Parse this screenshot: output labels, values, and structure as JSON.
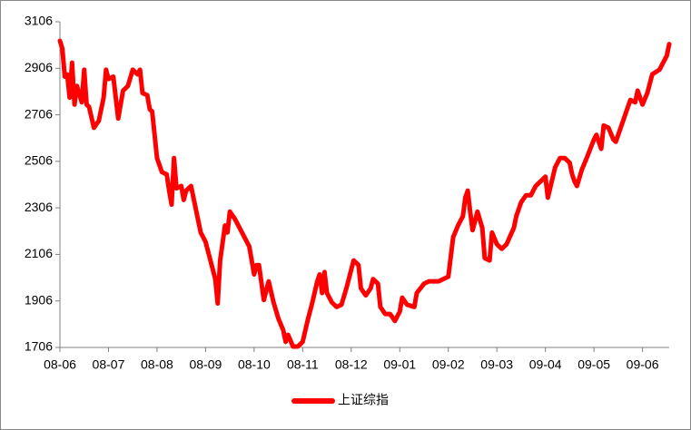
{
  "chart_data": {
    "type": "line",
    "x": [
      0,
      0.05,
      0.1,
      0.15,
      0.2,
      0.25,
      0.3,
      0.35,
      0.45,
      0.5,
      0.55,
      0.6,
      0.7,
      0.8,
      0.9,
      0.95,
      1.0,
      1.1,
      1.15,
      1.2,
      1.3,
      1.4,
      1.5,
      1.6,
      1.65,
      1.7,
      1.8,
      1.85,
      1.9,
      1.95,
      2.0,
      2.1,
      2.2,
      2.25,
      2.3,
      2.35,
      2.4,
      2.5,
      2.55,
      2.6,
      2.7,
      2.8,
      2.9,
      3.0,
      3.1,
      3.2,
      3.25,
      3.3,
      3.4,
      3.45,
      3.5,
      3.6,
      3.7,
      3.8,
      3.9,
      4.0,
      4.05,
      4.1,
      4.2,
      4.3,
      4.4,
      4.5,
      4.6,
      4.65,
      4.7,
      4.8,
      4.9,
      5.0,
      5.1,
      5.2,
      5.3,
      5.35,
      5.4,
      5.45,
      5.5,
      5.6,
      5.7,
      5.8,
      5.9,
      6.0,
      6.05,
      6.15,
      6.2,
      6.3,
      6.4,
      6.45,
      6.55,
      6.6,
      6.7,
      6.8,
      6.9,
      7.0,
      7.05,
      7.15,
      7.3,
      7.35,
      7.5,
      7.6,
      7.7,
      7.8,
      8.0,
      8.1,
      8.2,
      8.3,
      8.35,
      8.4,
      8.45,
      8.5,
      8.6,
      8.7,
      8.75,
      8.85,
      8.9,
      9.0,
      9.1,
      9.2,
      9.35,
      9.4,
      9.5,
      9.6,
      9.7,
      9.8,
      9.9,
      10.0,
      10.05,
      10.2,
      10.3,
      10.4,
      10.5,
      10.55,
      10.6,
      10.65,
      10.75,
      10.85,
      11.0,
      11.05,
      11.15,
      11.2,
      11.3,
      11.4,
      11.45,
      11.5,
      11.6,
      11.7,
      11.75,
      11.85,
      11.9,
      12.0,
      12.1,
      12.2,
      12.35,
      12.45,
      12.5,
      12.55
    ],
    "series": [
      {
        "name": "上证综指",
        "color": "#ff0000",
        "values": [
          3024,
          2990,
          2870,
          2880,
          2780,
          2930,
          2750,
          2830,
          2760,
          2900,
          2750,
          2740,
          2650,
          2680,
          2780,
          2900,
          2860,
          2870,
          2780,
          2690,
          2810,
          2830,
          2900,
          2880,
          2900,
          2800,
          2790,
          2730,
          2720,
          2620,
          2520,
          2460,
          2450,
          2380,
          2320,
          2520,
          2390,
          2400,
          2340,
          2380,
          2400,
          2300,
          2200,
          2160,
          2080,
          2000,
          1895,
          2080,
          2230,
          2200,
          2290,
          2260,
          2220,
          2180,
          2140,
          2020,
          2060,
          2060,
          1910,
          1990,
          1900,
          1830,
          1780,
          1730,
          1760,
          1710,
          1710,
          1730,
          1820,
          1900,
          1990,
          2020,
          1940,
          2030,
          1940,
          1900,
          1880,
          1890,
          1960,
          2040,
          2080,
          2060,
          1960,
          1930,
          1960,
          2000,
          1980,
          1880,
          1850,
          1850,
          1820,
          1860,
          1920,
          1890,
          1880,
          1940,
          1980,
          1990,
          1990,
          1990,
          2010,
          2180,
          2230,
          2270,
          2350,
          2380,
          2290,
          2210,
          2290,
          2220,
          2090,
          2080,
          2200,
          2150,
          2130,
          2150,
          2220,
          2270,
          2330,
          2360,
          2360,
          2400,
          2420,
          2440,
          2350,
          2480,
          2520,
          2520,
          2500,
          2450,
          2420,
          2400,
          2470,
          2520,
          2600,
          2620,
          2560,
          2660,
          2650,
          2600,
          2590,
          2620,
          2680,
          2740,
          2770,
          2760,
          2810,
          2750,
          2800,
          2880,
          2900,
          2940,
          2960,
          3010
        ]
      }
    ],
    "xlim": [
      0,
      12.55
    ],
    "xticks": [
      {
        "value": 0,
        "label": "08-06"
      },
      {
        "value": 1,
        "label": "08-07"
      },
      {
        "value": 2,
        "label": "08-08"
      },
      {
        "value": 3,
        "label": "08-09"
      },
      {
        "value": 4,
        "label": "08-10"
      },
      {
        "value": 5,
        "label": "08-11"
      },
      {
        "value": 6,
        "label": "08-12"
      },
      {
        "value": 7,
        "label": "09-01"
      },
      {
        "value": 8,
        "label": "09-02"
      },
      {
        "value": 9,
        "label": "09-03"
      },
      {
        "value": 10,
        "label": "09-04"
      },
      {
        "value": 11,
        "label": "09-05"
      },
      {
        "value": 12,
        "label": "09-06"
      }
    ],
    "ylim": [
      1706,
      3106
    ],
    "yticks": [
      1706,
      1906,
      2106,
      2306,
      2506,
      2706,
      2906,
      3106
    ],
    "grid": false,
    "legend": "bottom"
  }
}
